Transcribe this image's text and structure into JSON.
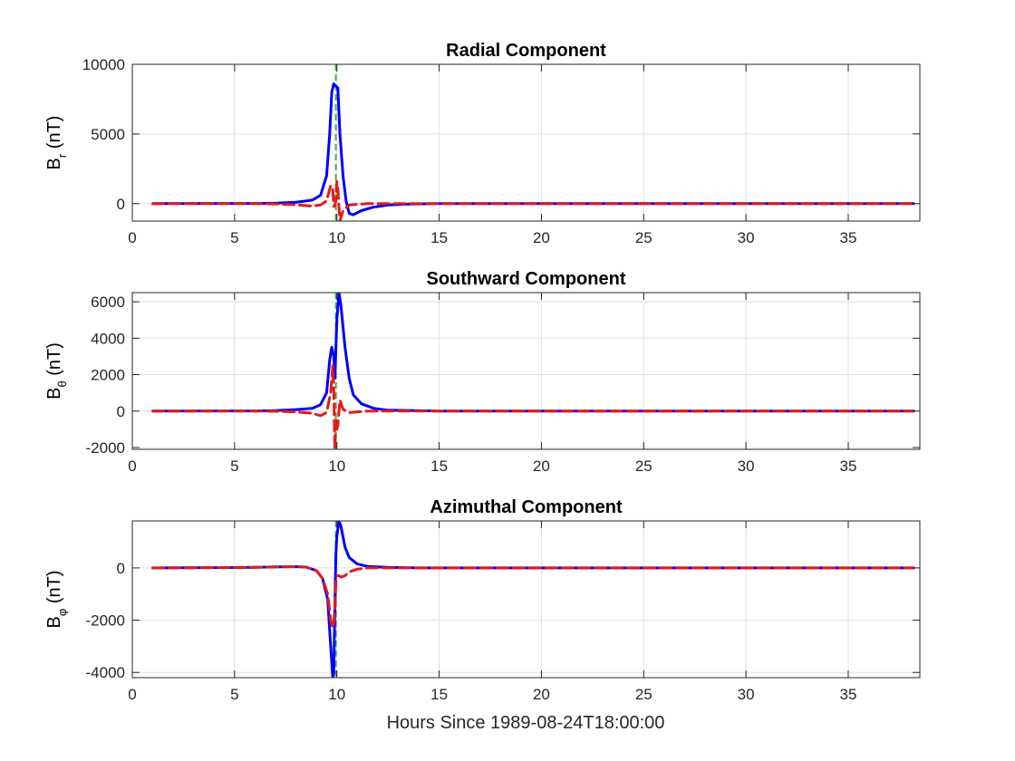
{
  "figure": {
    "xlabel": "Hours Since 1989-08-24T18:00:00",
    "colors": {
      "blue": "#0000ff",
      "red": "#e41a1c",
      "green": "#4daf4a",
      "axis": "#262626",
      "grid": "#dfdfdf"
    }
  },
  "chart_data": [
    {
      "type": "line",
      "title": "Radial Component",
      "ylabel": {
        "base": "B",
        "sub": "r",
        "unit": " (nT)"
      },
      "xlim": [
        0,
        38.5
      ],
      "ylim": [
        -1250,
        10000
      ],
      "xticks": [
        0,
        5,
        10,
        15,
        20,
        25,
        30,
        35
      ],
      "yticks": [
        0,
        5000,
        10000
      ],
      "yticklabels": [
        "0",
        "5000",
        "10000"
      ],
      "vline_x": 9.95,
      "series": [
        {
          "style": "solid-blue",
          "x": [
            1,
            6,
            7,
            8,
            8.8,
            9.2,
            9.5,
            9.65,
            9.75,
            9.85,
            9.9,
            10.05,
            10.15,
            10.3,
            10.45,
            10.6,
            10.8,
            11.2,
            11.8,
            12.5,
            13.5,
            15,
            20,
            25,
            30,
            35,
            38.2
          ],
          "y": [
            0,
            10,
            30,
            100,
            250,
            600,
            2000,
            5000,
            8000,
            8600,
            8500,
            8300,
            5000,
            2000,
            200,
            -700,
            -800,
            -500,
            -250,
            -100,
            -30,
            0,
            0,
            0,
            0,
            0,
            0
          ]
        },
        {
          "style": "dashed-red",
          "x": [
            1,
            6,
            7,
            8,
            8.8,
            9.2,
            9.5,
            9.7,
            9.8,
            9.85,
            9.9,
            9.95,
            10.0,
            10.05,
            10.15,
            10.3,
            10.6,
            11.0,
            11.5,
            15,
            20,
            25,
            30,
            35,
            38.2
          ],
          "y": [
            0,
            0,
            -20,
            -80,
            -180,
            -100,
            200,
            1300,
            1000,
            -200,
            -150,
            200,
            1600,
            1000,
            -1250,
            -500,
            -100,
            -50,
            0,
            0,
            0,
            0,
            0,
            0,
            0
          ]
        }
      ]
    },
    {
      "type": "line",
      "title": "Southward Component",
      "ylabel": {
        "base": "B",
        "sub": "θ",
        "unit": " (nT)"
      },
      "xlim": [
        0,
        38.5
      ],
      "ylim": [
        -2100,
        6500
      ],
      "xticks": [
        0,
        5,
        10,
        15,
        20,
        25,
        30,
        35
      ],
      "yticks": [
        -2000,
        0,
        2000,
        4000,
        6000
      ],
      "yticklabels": [
        "-2000",
        "0",
        "2000",
        "4000",
        "6000"
      ],
      "vline_x": 9.95,
      "series": [
        {
          "style": "solid-blue",
          "x": [
            1,
            6,
            7,
            8,
            8.8,
            9.2,
            9.5,
            9.65,
            9.75,
            9.85,
            9.9,
            10.0,
            10.1,
            10.2,
            10.4,
            10.6,
            10.8,
            11.2,
            11.8,
            12.5,
            15,
            20,
            25,
            30,
            35,
            38.2
          ],
          "y": [
            0,
            10,
            30,
            80,
            150,
            350,
            1000,
            2800,
            3500,
            3000,
            1800,
            5000,
            6500,
            5800,
            3500,
            1800,
            900,
            400,
            150,
            50,
            0,
            0,
            0,
            0,
            0,
            0
          ]
        },
        {
          "style": "dashed-red",
          "x": [
            1,
            6,
            7,
            8,
            8.8,
            9.2,
            9.5,
            9.7,
            9.8,
            9.85,
            9.9,
            9.95,
            10.0,
            10.05,
            10.15,
            10.3,
            10.6,
            11.0,
            11.5,
            15,
            20,
            25,
            30,
            35,
            38.2
          ],
          "y": [
            0,
            0,
            -10,
            -40,
            -120,
            -250,
            -80,
            1000,
            2500,
            1200,
            -2100,
            -500,
            -1000,
            -800,
            600,
            100,
            -80,
            -40,
            0,
            0,
            0,
            0,
            0,
            0,
            0
          ]
        }
      ]
    },
    {
      "type": "line",
      "title": "Azimuthal Component",
      "ylabel": {
        "base": "B",
        "sub": "φ",
        "unit": " (nT)"
      },
      "xlim": [
        0,
        38.5
      ],
      "ylim": [
        -4200,
        1800
      ],
      "xticks": [
        0,
        5,
        10,
        15,
        20,
        25,
        30,
        35
      ],
      "yticks": [
        -4000,
        -2000,
        0
      ],
      "yticklabels": [
        "-4000",
        "-2000",
        "0"
      ],
      "vline_x": 9.95,
      "series": [
        {
          "style": "solid-blue",
          "x": [
            1,
            6,
            7,
            8,
            8.5,
            9.0,
            9.3,
            9.55,
            9.7,
            9.8,
            9.85,
            9.9,
            9.95,
            10.0,
            10.1,
            10.2,
            10.4,
            10.6,
            11.0,
            11.5,
            12.5,
            14,
            20,
            25,
            30,
            35,
            38.2
          ],
          "y": [
            0,
            20,
            40,
            50,
            30,
            -100,
            -400,
            -1200,
            -3000,
            -4200,
            -4000,
            -1500,
            500,
            1200,
            1800,
            1600,
            800,
            400,
            150,
            60,
            20,
            0,
            0,
            0,
            0,
            0,
            0
          ]
        },
        {
          "style": "dashed-red",
          "x": [
            1,
            6,
            7,
            8,
            8.5,
            9.0,
            9.3,
            9.55,
            9.7,
            9.8,
            9.85,
            9.9,
            9.95,
            10.0,
            10.1,
            10.2,
            10.4,
            10.6,
            11.0,
            11.5,
            14,
            20,
            25,
            30,
            35,
            38.2
          ],
          "y": [
            0,
            20,
            40,
            50,
            30,
            -100,
            -400,
            -1000,
            -2000,
            -2300,
            -2100,
            -1500,
            -600,
            -300,
            -300,
            -350,
            -300,
            -150,
            -50,
            0,
            0,
            0,
            0,
            0,
            0,
            0
          ]
        }
      ]
    }
  ]
}
